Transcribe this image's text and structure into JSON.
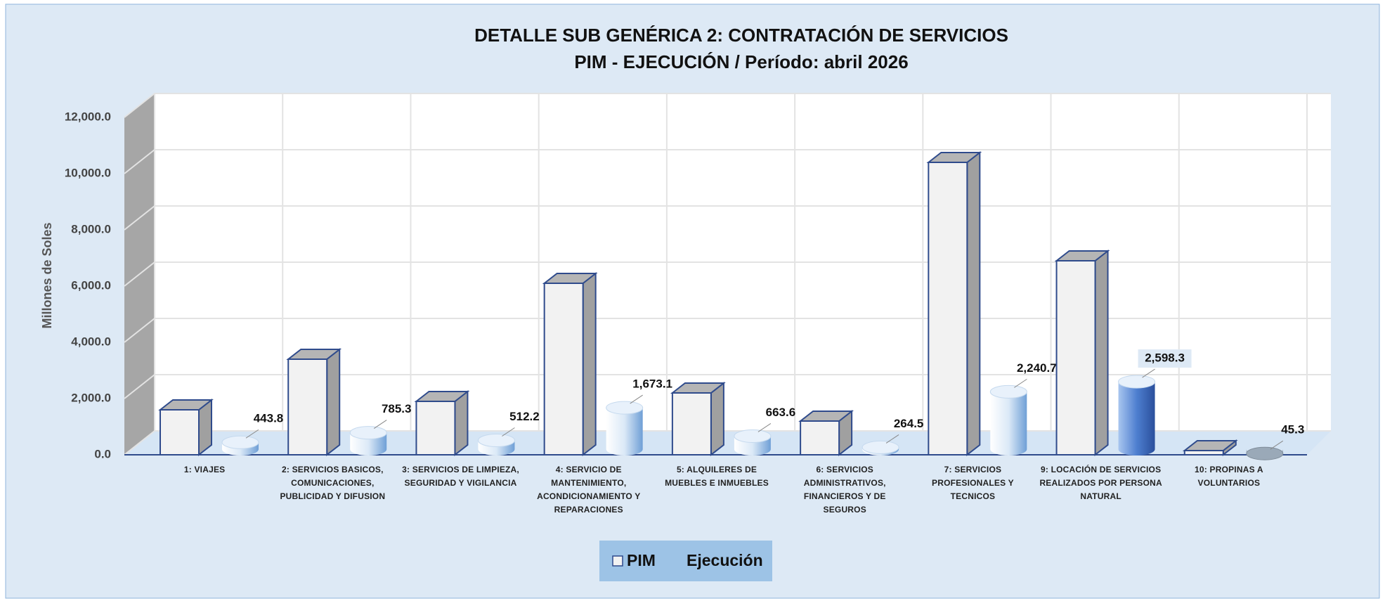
{
  "chart_data": {
    "type": "bar3d",
    "title": "DETALLE SUB GENÉRICA 2: CONTRATACIÓN DE SERVICIOS",
    "subtitle": "PIM - EJECUCIÓN / Período:  abril  2026",
    "y_label": "Millones de Soles",
    "categories": [
      "1: VIAJES",
      "2: SERVICIOS BASICOS, COMUNICACIONES, PUBLICIDAD Y DIFUSION",
      "3: SERVICIOS DE LIMPIEZA, SEGURIDAD Y VIGILANCIA",
      "4: SERVICIO DE MANTENIMIENTO, ACONDICIONAMIENTO Y REPARACIONES",
      "5: ALQUILERES DE MUEBLES E INMUEBLES",
      "6: SERVICIOS ADMINISTRATIVOS, FINANCIEROS Y DE SEGUROS",
      "7: SERVICIOS PROFESIONALES Y TECNICOS",
      "9: LOCACIÓN DE SERVICIOS REALIZADOS POR PERSONA NATURAL",
      "10: PROPINAS A VOLUNTARIOS"
    ],
    "series": [
      {
        "name": "PIM",
        "color": "#f2f2f2",
        "values": [
          1600,
          3400,
          1900,
          6100,
          2200,
          1200,
          10400,
          6900,
          150
        ]
      },
      {
        "name": "Ejecución",
        "color": "#9dc3e6",
        "values": [
          443.8,
          785.3,
          512.2,
          1673.1,
          663.6,
          264.5,
          2240.7,
          2598.3,
          45.3
        ],
        "value_labels": [
          "443.8",
          "785.3",
          "512.2",
          "1,673.1",
          "663.6",
          "264.5",
          "2,240.7",
          "2,598.3",
          "45.3"
        ]
      }
    ],
    "ylim": [
      0,
      12000
    ],
    "yticks": [
      {
        "value": 0,
        "label": "0.0"
      },
      {
        "value": 2000,
        "label": "2,000.0"
      },
      {
        "value": 4000,
        "label": "4,000.0"
      },
      {
        "value": 6000,
        "label": "6,000.0"
      },
      {
        "value": 8000,
        "label": "8,000.0"
      },
      {
        "value": 10000,
        "label": "10,000.0"
      },
      {
        "value": 12000,
        "label": "12,000.0"
      }
    ],
    "grid": true
  }
}
